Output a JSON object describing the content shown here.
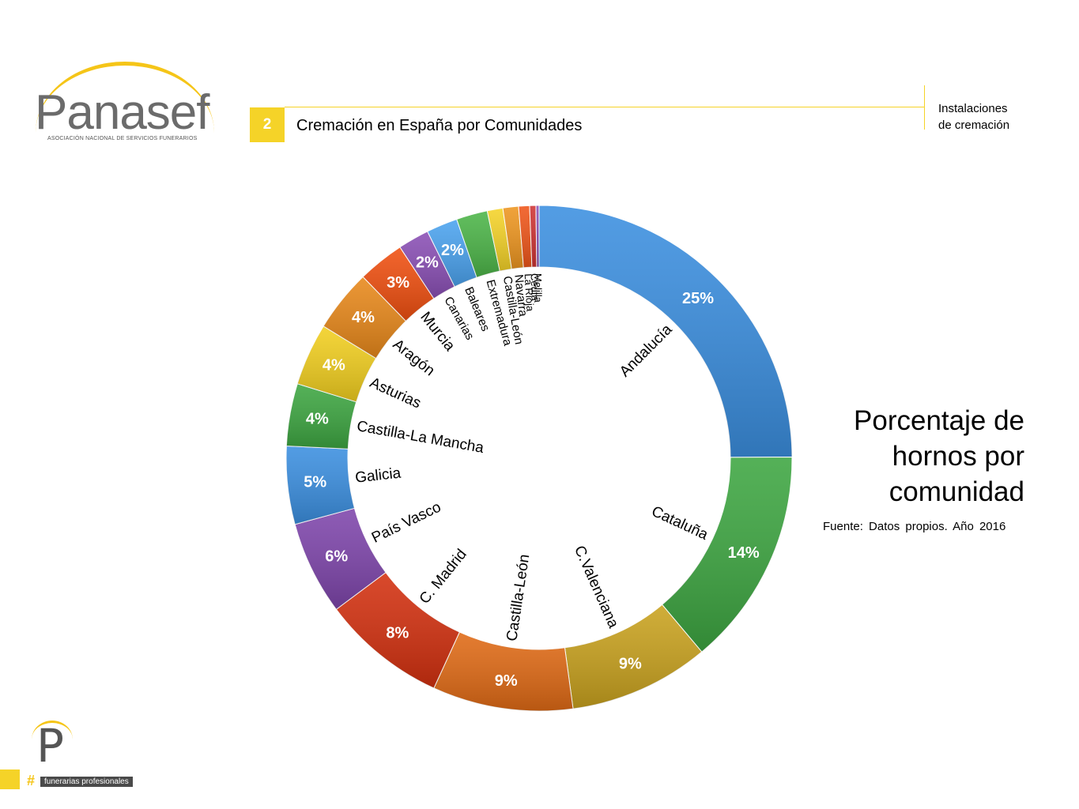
{
  "brand": {
    "name": "Panasef",
    "subtitle": "ASOCIACIÓN NACIONAL DE SERVICIOS FUNERARIOS",
    "footer_letter": "P",
    "footer_hash": "#",
    "footer_tag": "funerarias profesionales",
    "accent_color": "#f5d328"
  },
  "header": {
    "section_number": "2",
    "section_title": "Cremación en España por Comunidades",
    "side_label_lines": [
      "Instalaciones",
      "de cremación"
    ]
  },
  "side_title_lines": [
    "Porcentaje de",
    "hornos por",
    "comunidad"
  ],
  "source": "Fuente: Datos propios. Año 2016",
  "chart_data": {
    "type": "pie",
    "style": "donut",
    "series": [
      {
        "name": "Andalucía",
        "value": 25,
        "label": "25%",
        "color": "#3b8fe0"
      },
      {
        "name": "Cataluña",
        "value": 14,
        "label": "14%",
        "color": "#3da641"
      },
      {
        "name": "C.Valenciana",
        "value": 9,
        "label": "9%",
        "color": "#c9a21e"
      },
      {
        "name": "Castilla-León",
        "value": 9,
        "label": "9%",
        "color": "#e06a15"
      },
      {
        "name": "C. Madrid",
        "value": 8,
        "label": "8%",
        "color": "#d3300f"
      },
      {
        "name": "País Vasco",
        "value": 6,
        "label": "6%",
        "color": "#7e45ab"
      },
      {
        "name": "Galicia",
        "value": 5,
        "label": "5%",
        "color": "#3b8fe0"
      },
      {
        "name": "Castilla-La Mancha",
        "value": 4,
        "label": "4%",
        "color": "#3da641"
      },
      {
        "name": "Asturias",
        "value": 4,
        "label": "4%",
        "color": "#f2cf1f"
      },
      {
        "name": "Aragón",
        "value": 4,
        "label": "4%",
        "color": "#e8881a"
      },
      {
        "name": "Murcia",
        "value": 3,
        "label": "3%",
        "color": "#f04f10"
      },
      {
        "name": "Canarias",
        "value": 2,
        "label": "2%",
        "color": "#8a4fb5"
      },
      {
        "name": "Baleares",
        "value": 2,
        "label": "2%",
        "color": "#4ba3ef"
      },
      {
        "name": "Extremadura",
        "value": 2,
        "label": "",
        "color": "#4cb548"
      },
      {
        "name": "Castilla-León",
        "value": 1,
        "label": "",
        "color": "#f5d328"
      },
      {
        "name": "Navarra",
        "value": 1,
        "label": "",
        "color": "#ee9620"
      },
      {
        "name": "La Rioja",
        "value": 0.7,
        "label": "",
        "color": "#f0561a"
      },
      {
        "name": "Ceuta",
        "value": 0.4,
        "label": "",
        "color": "#cf3434"
      },
      {
        "name": "Melilla",
        "value": 0.2,
        "label": "",
        "color": "#8a4fb5"
      }
    ]
  }
}
